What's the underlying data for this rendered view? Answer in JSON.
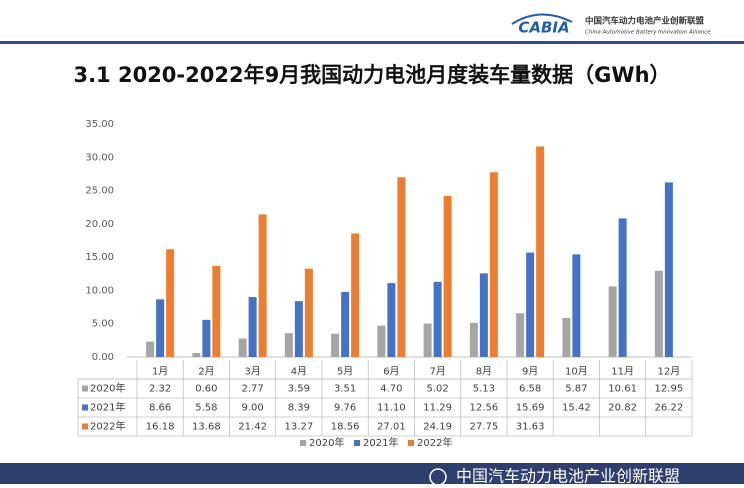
{
  "header": {
    "logo": "CABIA",
    "org_cn": "中国汽车动力电池产业创新联盟",
    "org_en": "China Automotive Battery Innovation Alliance"
  },
  "footer": {
    "text": "中国汽车动力电池产业创新联盟"
  },
  "chart_data": {
    "type": "bar",
    "title": "3.1 2020-2022年9月我国动力电池月度装车量数据（GWh）",
    "categories": [
      "1月",
      "2月",
      "3月",
      "4月",
      "5月",
      "6月",
      "7月",
      "8月",
      "9月",
      "10月",
      "11月",
      "12月"
    ],
    "series": [
      {
        "name": "2020年",
        "color": "#a5a5a5",
        "values": [
          2.32,
          0.6,
          2.77,
          3.59,
          3.51,
          4.7,
          5.02,
          5.13,
          6.58,
          5.87,
          10.61,
          12.95
        ],
        "value_labels": [
          "2.32",
          "0.60",
          "2.77",
          "3.59",
          "3.51",
          "4.70",
          "5.02",
          "5.13",
          "6.58",
          "5.87",
          "10.61",
          "12.95"
        ]
      },
      {
        "name": "2021年",
        "color": "#4472c4",
        "values": [
          8.66,
          5.58,
          9.0,
          8.39,
          9.76,
          11.1,
          11.29,
          12.56,
          15.69,
          15.42,
          20.82,
          26.22
        ],
        "value_labels": [
          "8.66",
          "5.58",
          "9.00",
          "8.39",
          "9.76",
          "11.10",
          "11.29",
          "12.56",
          "15.69",
          "15.42",
          "20.82",
          "26.22"
        ]
      },
      {
        "name": "2022年",
        "color": "#ed7d31",
        "values": [
          16.18,
          13.68,
          21.42,
          13.27,
          18.56,
          27.01,
          24.19,
          27.75,
          31.63,
          null,
          null,
          null
        ],
        "value_labels": [
          "16.18",
          "13.68",
          "21.42",
          "13.27",
          "18.56",
          "27.01",
          "24.19",
          "27.75",
          "31.63",
          null,
          null,
          null
        ]
      }
    ],
    "ylim": [
      0,
      35
    ],
    "yticks": [
      {
        "value": 0,
        "label": "0.00"
      },
      {
        "value": 5,
        "label": "5.00"
      },
      {
        "value": 10,
        "label": "10.00"
      },
      {
        "value": 15,
        "label": "15.00"
      },
      {
        "value": 20,
        "label": "20.00"
      },
      {
        "value": 25,
        "label": "25.00"
      },
      {
        "value": 30,
        "label": "30.00"
      },
      {
        "value": 35,
        "label": "35.00"
      }
    ],
    "legend": "bottom"
  }
}
